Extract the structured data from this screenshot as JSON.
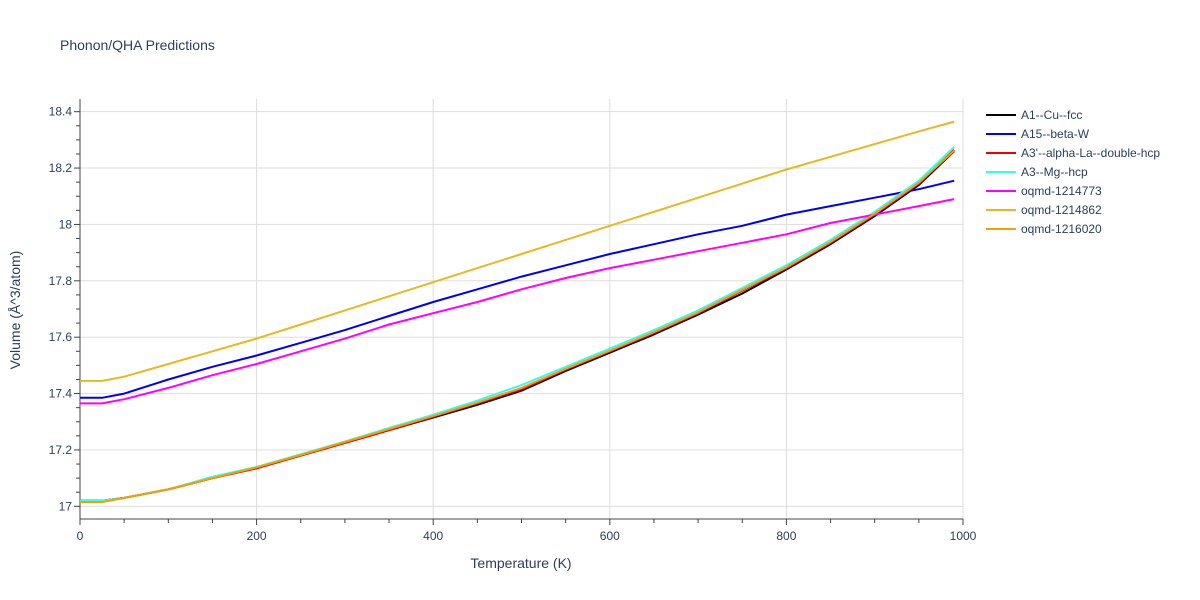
{
  "chart_data": {
    "type": "line",
    "title": "Phonon/QHA Predictions",
    "xlabel": "Temperature (K)",
    "ylabel": "Volume (Å^3/atom)",
    "xlim": [
      0,
      1000
    ],
    "ylim": [
      16.955,
      18.445
    ],
    "x_ticks": [
      "0",
      "200",
      "400",
      "600",
      "800",
      "1000"
    ],
    "y_ticks": [
      "17",
      "17.2",
      "17.4",
      "17.6",
      "17.8",
      "18",
      "18.2",
      "18.4"
    ],
    "grid": true,
    "legend_position": "right",
    "x": [
      0,
      25,
      50,
      100,
      150,
      200,
      250,
      300,
      350,
      400,
      450,
      500,
      550,
      600,
      650,
      700,
      750,
      800,
      850,
      900,
      950,
      990
    ],
    "series": [
      {
        "name": "A1--Cu--fcc",
        "color": "#000000",
        "values": [
          17.02,
          17.02,
          17.03,
          17.06,
          17.1,
          17.135,
          17.18,
          17.225,
          17.27,
          17.315,
          17.36,
          17.41,
          17.48,
          17.545,
          17.61,
          17.68,
          17.755,
          17.84,
          17.93,
          18.03,
          18.14,
          18.26
        ]
      },
      {
        "name": "A15--beta-W",
        "color": "#0000ee",
        "values": [
          17.385,
          17.385,
          17.4,
          17.45,
          17.495,
          17.535,
          17.58,
          17.625,
          17.675,
          17.725,
          17.77,
          17.815,
          17.855,
          17.895,
          17.93,
          17.965,
          17.995,
          18.035,
          18.065,
          18.095,
          18.125,
          18.155
        ]
      },
      {
        "name": "A3'--alpha-La--double-hcp",
        "color": "#ee0000",
        "values": [
          17.02,
          17.02,
          17.03,
          17.06,
          17.1,
          17.135,
          17.18,
          17.225,
          17.27,
          17.318,
          17.365,
          17.415,
          17.485,
          17.55,
          17.615,
          17.685,
          17.765,
          17.845,
          17.935,
          18.035,
          18.145,
          18.265
        ]
      },
      {
        "name": "A3--Mg--hcp",
        "color": "#33ffee",
        "values": [
          17.02,
          17.02,
          17.03,
          17.06,
          17.105,
          17.14,
          17.185,
          17.23,
          17.278,
          17.325,
          17.375,
          17.43,
          17.495,
          17.56,
          17.625,
          17.695,
          17.775,
          17.855,
          17.945,
          18.045,
          18.155,
          18.275
        ]
      },
      {
        "name": "oqmd-1214773",
        "color": "#ff00ff",
        "values": [
          17.365,
          17.365,
          17.38,
          17.42,
          17.465,
          17.505,
          17.55,
          17.595,
          17.645,
          17.685,
          17.725,
          17.77,
          17.81,
          17.845,
          17.875,
          17.905,
          17.935,
          17.965,
          18.005,
          18.035,
          18.065,
          18.09
        ]
      },
      {
        "name": "oqmd-1214862",
        "color": "#e8b820",
        "values": [
          17.445,
          17.445,
          17.46,
          17.505,
          17.55,
          17.595,
          17.645,
          17.695,
          17.745,
          17.795,
          17.845,
          17.895,
          17.945,
          17.995,
          18.045,
          18.095,
          18.145,
          18.195,
          18.24,
          18.285,
          18.33,
          18.365
        ]
      },
      {
        "name": "oqmd-1216020",
        "color": "#f0a000",
        "values": [
          17.015,
          17.015,
          17.03,
          17.06,
          17.1,
          17.138,
          17.182,
          17.228,
          17.274,
          17.32,
          17.368,
          17.42,
          17.488,
          17.552,
          17.618,
          17.688,
          17.768,
          17.848,
          17.938,
          18.038,
          18.148,
          18.262
        ]
      }
    ]
  }
}
